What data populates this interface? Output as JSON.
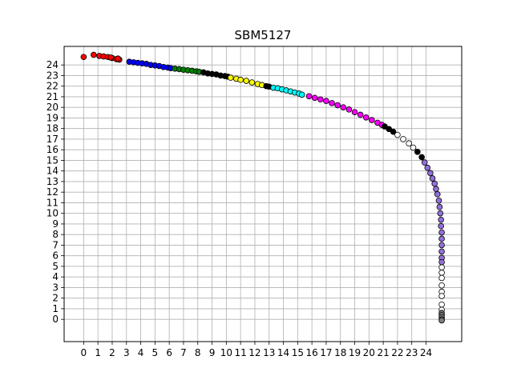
{
  "chart_data": {
    "type": "scatter",
    "title": "SBM5127",
    "xlabel": "",
    "ylabel": "",
    "xlim": [
      -1.37,
      26.5
    ],
    "ylim": [
      -2.1,
      25.75
    ],
    "xticks": [
      0,
      1,
      2,
      3,
      4,
      5,
      6,
      7,
      8,
      9,
      10,
      11,
      12,
      13,
      14,
      15,
      16,
      17,
      18,
      19,
      20,
      21,
      22,
      23,
      24
    ],
    "yticks": [
      0,
      1,
      2,
      3,
      4,
      5,
      6,
      7,
      8,
      9,
      10,
      11,
      12,
      13,
      14,
      15,
      16,
      17,
      18,
      19,
      20,
      21,
      22,
      23,
      24
    ],
    "grid": true,
    "legend": "none",
    "series": [
      {
        "color": "#ff0000",
        "points": [
          [
            0.0,
            24.75
          ],
          [
            0.7,
            24.95
          ],
          [
            1.1,
            24.85
          ],
          [
            1.4,
            24.8
          ],
          [
            1.7,
            24.75
          ],
          [
            2.0,
            24.65
          ],
          [
            2.3,
            24.55
          ],
          [
            2.5,
            24.5
          ],
          [
            2.4,
            24.6
          ],
          [
            1.9,
            24.7
          ]
        ]
      },
      {
        "color": "#0000ff",
        "points": [
          [
            3.2,
            24.3
          ],
          [
            3.5,
            24.25
          ],
          [
            3.8,
            24.2
          ],
          [
            4.1,
            24.15
          ],
          [
            4.4,
            24.1
          ],
          [
            4.7,
            24.0
          ],
          [
            5.0,
            23.95
          ],
          [
            5.3,
            23.9
          ],
          [
            5.6,
            23.8
          ],
          [
            5.9,
            23.75
          ],
          [
            6.1,
            23.7
          ]
        ]
      },
      {
        "color": "#008000",
        "points": [
          [
            6.4,
            23.65
          ],
          [
            6.7,
            23.6
          ],
          [
            7.0,
            23.55
          ],
          [
            7.3,
            23.5
          ],
          [
            7.6,
            23.45
          ],
          [
            7.9,
            23.4
          ],
          [
            8.1,
            23.35
          ]
        ]
      },
      {
        "color": "#000000",
        "points": [
          [
            8.4,
            23.3
          ],
          [
            8.7,
            23.2
          ],
          [
            9.0,
            23.15
          ],
          [
            9.3,
            23.1
          ],
          [
            9.6,
            23.0
          ],
          [
            9.9,
            22.95
          ],
          [
            10.1,
            22.9
          ]
        ]
      },
      {
        "color": "#ffff00",
        "points": [
          [
            10.3,
            22.8
          ],
          [
            10.7,
            22.7
          ],
          [
            11.0,
            22.6
          ],
          [
            11.4,
            22.5
          ],
          [
            11.8,
            22.35
          ],
          [
            12.2,
            22.2
          ],
          [
            12.5,
            22.1
          ]
        ]
      },
      {
        "color": "#000000",
        "points": [
          [
            12.8,
            22.0
          ],
          [
            13.0,
            21.95
          ]
        ]
      },
      {
        "color": "#00ffff",
        "points": [
          [
            13.3,
            21.85
          ],
          [
            13.6,
            21.8
          ],
          [
            13.9,
            21.7
          ],
          [
            14.2,
            21.6
          ],
          [
            14.5,
            21.5
          ],
          [
            14.8,
            21.4
          ],
          [
            15.1,
            21.3
          ],
          [
            15.3,
            21.2
          ]
        ]
      },
      {
        "color": "#ff00ff",
        "points": [
          [
            15.8,
            21.05
          ],
          [
            16.2,
            20.9
          ],
          [
            16.6,
            20.75
          ],
          [
            17.0,
            20.6
          ],
          [
            17.4,
            20.4
          ],
          [
            17.8,
            20.2
          ],
          [
            18.2,
            20.0
          ],
          [
            18.6,
            19.8
          ],
          [
            19.0,
            19.55
          ],
          [
            19.4,
            19.3
          ],
          [
            19.8,
            19.05
          ],
          [
            20.2,
            18.8
          ],
          [
            20.6,
            18.55
          ],
          [
            20.9,
            18.35
          ]
        ]
      },
      {
        "color": "#000000",
        "points": [
          [
            21.1,
            18.2
          ],
          [
            21.4,
            17.95
          ],
          [
            21.7,
            17.7
          ]
        ]
      },
      {
        "color": "#ffffff",
        "points": [
          [
            22.0,
            17.4
          ],
          [
            22.4,
            17.0
          ],
          [
            22.8,
            16.6
          ],
          [
            23.1,
            16.2
          ]
        ]
      },
      {
        "color": "#000000",
        "points": [
          [
            23.4,
            15.8
          ],
          [
            23.7,
            15.3
          ]
        ]
      },
      {
        "color": "#9370db",
        "points": [
          [
            23.9,
            14.8
          ],
          [
            24.1,
            14.3
          ],
          [
            24.3,
            13.8
          ],
          [
            24.45,
            13.3
          ],
          [
            24.6,
            12.8
          ],
          [
            24.7,
            12.3
          ],
          [
            24.8,
            11.8
          ],
          [
            24.9,
            11.2
          ],
          [
            24.95,
            10.6
          ],
          [
            25.0,
            10.0
          ],
          [
            25.05,
            9.4
          ],
          [
            25.05,
            8.8
          ],
          [
            25.1,
            8.2
          ],
          [
            25.1,
            7.6
          ],
          [
            25.1,
            7.0
          ],
          [
            25.1,
            6.4
          ],
          [
            25.1,
            5.8
          ],
          [
            25.1,
            5.4
          ]
        ]
      },
      {
        "color": "#ffffff",
        "points": [
          [
            25.1,
            4.9
          ],
          [
            25.1,
            4.4
          ],
          [
            25.1,
            3.9
          ],
          [
            25.1,
            3.2
          ],
          [
            25.1,
            2.6
          ],
          [
            25.1,
            2.2
          ],
          [
            25.1,
            1.4
          ],
          [
            25.1,
            0.9
          ]
        ]
      },
      {
        "color": "#808080",
        "points": [
          [
            25.1,
            0.6
          ],
          [
            25.1,
            0.4
          ],
          [
            25.1,
            0.2
          ],
          [
            25.1,
            0.0
          ],
          [
            25.1,
            -0.1
          ]
        ]
      }
    ]
  }
}
